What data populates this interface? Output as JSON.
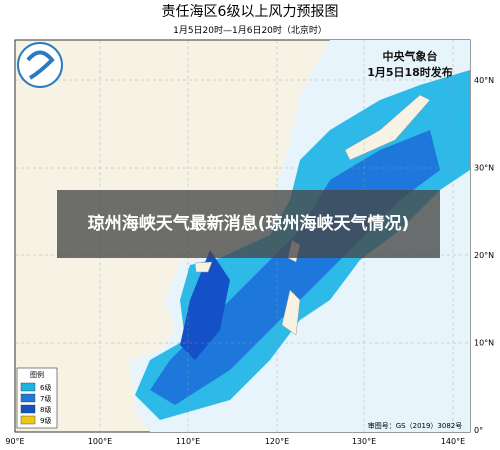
{
  "header": {
    "title": "责任海区6级以上风力预报图",
    "subtitle": "1月5日20时—1月6日20时（北京时）"
  },
  "issuer": {
    "name": "中央气象台",
    "time": "1月5日18时发布"
  },
  "overlay": {
    "headline": "琼州海峡天气最新消息(琼州海峡天气情况)"
  },
  "legend": {
    "title": "图例",
    "items": [
      {
        "label": "6级",
        "color": "#19b4e6"
      },
      {
        "label": "7级",
        "color": "#1e78dc"
      },
      {
        "label": "8级",
        "color": "#1450c8"
      },
      {
        "label": "9级",
        "color": "#f0c814"
      }
    ]
  },
  "axes": {
    "x_labels": [
      "90°E",
      "100°E",
      "110°E",
      "120°E",
      "130°E",
      "140°E"
    ],
    "y_labels": [
      "40°N",
      "30°N",
      "20°N",
      "10°N",
      "0°"
    ]
  },
  "credit": "审图号：GS（2019）3082号"
}
